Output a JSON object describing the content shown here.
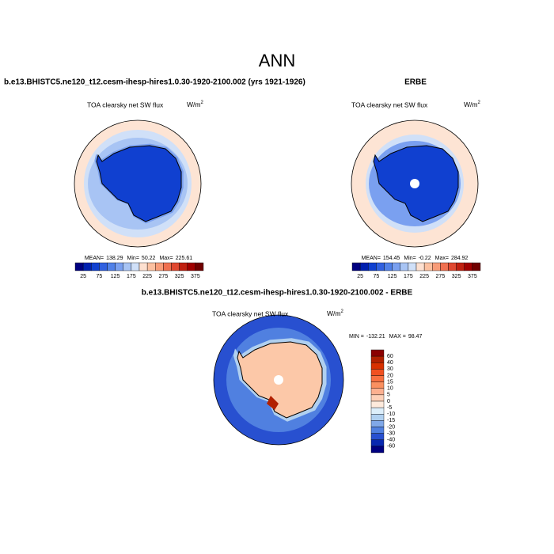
{
  "title": "ANN",
  "panels": [
    {
      "title": "b.e13.BHISTC5.ne120_t12.cesm-ihesp-hires1.0.30-1920-2100.002 (yrs 1921-1926)",
      "subtitle": "TOA clearsky net SW flux",
      "units": "W/m",
      "units_exp": "2",
      "stats": [
        {
          "label": "MEAN=",
          "value": 138.29
        },
        {
          "label": "Min=",
          "value": 50.22
        },
        {
          "label": "Max=",
          "value": 225.61
        }
      ],
      "colorbar": {
        "ticks": [
          25,
          75,
          125,
          175,
          225,
          275,
          325,
          375
        ],
        "colors": [
          "#000080",
          "#0020b0",
          "#1040d0",
          "#3060e0",
          "#5080e8",
          "#7aa0f0",
          "#a8c4f4",
          "#d0e0f8",
          "#fde0d0",
          "#fcc0a0",
          "#f89c78",
          "#f07050",
          "#e04830",
          "#c02010",
          "#a00000",
          "#700000"
        ]
      }
    },
    {
      "title": "ERBE",
      "subtitle": "TOA clearsky net SW flux",
      "units": "W/m",
      "units_exp": "2",
      "stats": [
        {
          "label": "MEAN=",
          "value": 154.45
        },
        {
          "label": "Min=",
          "value": -0.22
        },
        {
          "label": "Max=",
          "value": 284.92
        }
      ],
      "colorbar": {
        "ticks": [
          25,
          75,
          125,
          175,
          225,
          275,
          325,
          375
        ],
        "colors": [
          "#000080",
          "#0020b0",
          "#1040d0",
          "#3060e0",
          "#5080e8",
          "#7aa0f0",
          "#a8c4f4",
          "#d0e0f8",
          "#fde0d0",
          "#fcc0a0",
          "#f89c78",
          "#f07050",
          "#e04830",
          "#c02010",
          "#a00000",
          "#700000"
        ]
      }
    }
  ],
  "difference": {
    "title": "b.e13.BHISTC5.ne120_t12.cesm-ihesp-hires1.0.30-1920-2100.002 - ERBE",
    "subtitle": "TOA clearsky net SW flux",
    "units": "W/m",
    "units_exp": "2",
    "stats": [
      {
        "label": "MIN =",
        "value": -132.21
      },
      {
        "label": "MAX =",
        "value": 98.47
      }
    ],
    "colorbar": {
      "ticks": [
        60,
        40,
        30,
        20,
        15,
        10,
        5,
        0,
        -5,
        -10,
        -15,
        -20,
        -30,
        -40,
        -60
      ],
      "colors": [
        "#8b0000",
        "#b22000",
        "#d83000",
        "#f05020",
        "#f87040",
        "#fa9060",
        "#fcb090",
        "#fdd0b8",
        "#fdeadc",
        "#dceefa",
        "#b0d0f0",
        "#80a8e8",
        "#5080e0",
        "#2850d0",
        "#0828b0",
        "#000080"
      ]
    }
  }
}
